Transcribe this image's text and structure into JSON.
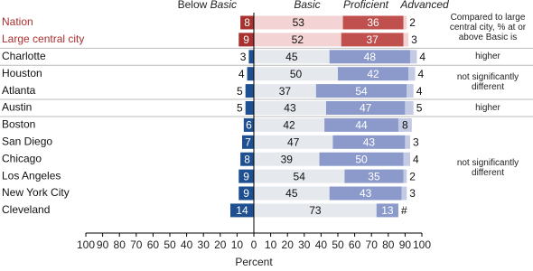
{
  "chart_data": {
    "type": "diverging_bar",
    "categories": [
      "Nation",
      "Large central city",
      "Charlotte",
      "Houston",
      "Atlanta",
      "Austin",
      "Boston",
      "San Diego",
      "Chicago",
      "Los Angeles",
      "New York City",
      "Cleveland"
    ],
    "highlight_rows": [
      0,
      1
    ],
    "highlight_color": "#a8302f",
    "series": [
      {
        "name": "Below Basic",
        "side": "left",
        "color": "#1d4f91",
        "highlight_color": "#a8302f",
        "values": [
          8,
          9,
          3,
          4,
          5,
          5,
          6,
          7,
          8,
          9,
          9,
          14
        ]
      },
      {
        "name": "Basic",
        "side": "right",
        "color": "#e5e9ee",
        "highlight_color": "#f3d3d3",
        "values": [
          53,
          52,
          45,
          50,
          37,
          43,
          42,
          47,
          39,
          54,
          45,
          73
        ]
      },
      {
        "name": "Proficient",
        "side": "right",
        "color": "#8c9acb",
        "highlight_color": "#c0504d",
        "values": [
          36,
          37,
          48,
          42,
          54,
          47,
          44,
          43,
          50,
          35,
          43,
          13
        ]
      },
      {
        "name": "Advanced",
        "side": "right",
        "color": "#c3cae3",
        "highlight_color": "#f3d3d3",
        "values": [
          2,
          3,
          4,
          4,
          4,
          5,
          8,
          3,
          4,
          2,
          3,
          0
        ],
        "value_labels": [
          "2",
          "3",
          "4",
          "4",
          "4",
          "5",
          "8",
          "3",
          "4",
          "2",
          "3",
          "#"
        ]
      }
    ],
    "xlabel": "Percent",
    "xlim": [
      -100,
      100
    ],
    "xticks": [
      {
        "value": -100,
        "label": "100"
      },
      {
        "value": -90,
        "label": "90"
      },
      {
        "value": -80,
        "label": "80"
      },
      {
        "value": -70,
        "label": "70"
      },
      {
        "value": -60,
        "label": "60"
      },
      {
        "value": -50,
        "label": "50"
      },
      {
        "value": -40,
        "label": "40"
      },
      {
        "value": -30,
        "label": "30"
      },
      {
        "value": -20,
        "label": "20"
      },
      {
        "value": -10,
        "label": "10"
      },
      0,
      10,
      20,
      30,
      40,
      50,
      60,
      70,
      80,
      90,
      100
    ],
    "comparison_note": "Compared to large central city, % at or above Basic is",
    "comparison_groups": [
      {
        "label": "higher",
        "first": 2,
        "last": 2
      },
      {
        "label": "not significantly different",
        "first": 3,
        "last": 4
      },
      {
        "label": "higher",
        "first": 5,
        "last": 5
      },
      {
        "label": "not significantly different",
        "first": 6,
        "last": 11
      }
    ]
  }
}
